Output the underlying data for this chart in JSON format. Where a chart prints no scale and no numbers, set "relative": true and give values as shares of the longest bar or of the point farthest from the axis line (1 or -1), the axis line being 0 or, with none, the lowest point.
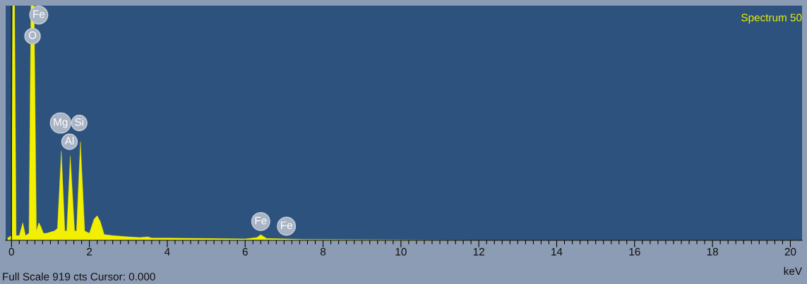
{
  "chart_data": {
    "type": "area",
    "title": "Spectrum 50",
    "xlabel": "keV",
    "relative": true,
    "color": "#f2f000",
    "x": [
      -0.1,
      0.0,
      0.03,
      0.08,
      0.12,
      0.2,
      0.29,
      0.36,
      0.45,
      0.5,
      0.58,
      0.64,
      0.7,
      0.75,
      0.82,
      0.9,
      1.0,
      1.1,
      1.18,
      1.28,
      1.37,
      1.42,
      1.51,
      1.62,
      1.67,
      1.77,
      1.88,
      2.0,
      2.12,
      2.2,
      2.28,
      2.38,
      2.6,
      3.0,
      3.3,
      3.5,
      3.6,
      4.0,
      5.0,
      6.0,
      6.3,
      6.4,
      6.55,
      7.06,
      7.5,
      9.0,
      10.0,
      11.0,
      12.0,
      20.2
    ],
    "values": [
      0.01,
      0.02,
      1,
      1,
      0.02,
      0.02,
      0.075,
      0.02,
      0.03,
      1,
      1,
      0.04,
      0.075,
      0.06,
      0.03,
      0.03,
      0.035,
      0.04,
      0.05,
      0.38,
      0.04,
      0.04,
      0.36,
      0.04,
      0.04,
      0.42,
      0.04,
      0.03,
      0.09,
      0.105,
      0.08,
      0.025,
      0.02,
      0.015,
      0.012,
      0.015,
      0.01,
      0.01,
      0.008,
      0.006,
      0.012,
      0.024,
      0.008,
      0.006,
      0.004,
      0.003,
      0.002,
      0.001,
      0.0,
      0.0
    ],
    "xlim": [
      -0.15,
      20.3
    ],
    "xticks": [
      0,
      {
        "value": 0.2,
        "label": null
      },
      {
        "value": 0.4,
        "label": null
      },
      {
        "value": 0.6,
        "label": null
      },
      {
        "value": 0.8,
        "label": null
      },
      {
        "value": 1,
        "label": null
      },
      {
        "value": 1.2,
        "label": null
      },
      {
        "value": 1.4,
        "label": null
      },
      {
        "value": 1.6,
        "label": null
      },
      {
        "value": 1.8,
        "label": null
      },
      2,
      {
        "value": 2.2,
        "label": null
      },
      {
        "value": 2.4,
        "label": null
      },
      {
        "value": 2.6,
        "label": null
      },
      {
        "value": 2.8,
        "label": null
      },
      {
        "value": 3,
        "label": null
      },
      {
        "value": 3.2,
        "label": null
      },
      {
        "value": 3.4,
        "label": null
      },
      {
        "value": 3.6,
        "label": null
      },
      {
        "value": 3.8,
        "label": null
      },
      4,
      {
        "value": 4.2,
        "label": null
      },
      {
        "value": 4.4,
        "label": null
      },
      {
        "value": 4.6,
        "label": null
      },
      {
        "value": 4.8,
        "label": null
      },
      {
        "value": 5,
        "label": null
      },
      {
        "value": 5.2,
        "label": null
      },
      {
        "value": 5.4,
        "label": null
      },
      {
        "value": 5.6,
        "label": null
      },
      {
        "value": 5.8,
        "label": null
      },
      6,
      {
        "value": 6.2,
        "label": null
      },
      {
        "value": 6.4,
        "label": null
      },
      {
        "value": 6.6,
        "label": null
      },
      {
        "value": 6.8,
        "label": null
      },
      {
        "value": 7,
        "label": null
      },
      {
        "value": 7.2,
        "label": null
      },
      {
        "value": 7.4,
        "label": null
      },
      {
        "value": 7.6,
        "label": null
      },
      {
        "value": 7.8,
        "label": null
      },
      8,
      {
        "value": 8.2,
        "label": null
      },
      {
        "value": 8.4,
        "label": null
      },
      {
        "value": 8.6,
        "label": null
      },
      {
        "value": 8.8,
        "label": null
      },
      {
        "value": 9,
        "label": null
      },
      {
        "value": 9.2,
        "label": null
      },
      {
        "value": 9.4,
        "label": null
      },
      {
        "value": 9.6,
        "label": null
      },
      {
        "value": 9.8,
        "label": null
      },
      10,
      {
        "value": 10.2,
        "label": null
      },
      {
        "value": 10.4,
        "label": null
      },
      {
        "value": 10.6,
        "label": null
      },
      {
        "value": 10.8,
        "label": null
      },
      {
        "value": 11,
        "label": null
      },
      {
        "value": 11.2,
        "label": null
      },
      {
        "value": 11.4,
        "label": null
      },
      {
        "value": 11.6,
        "label": null
      },
      {
        "value": 11.8,
        "label": null
      },
      12,
      {
        "value": 12.2,
        "label": null
      },
      {
        "value": 12.4,
        "label": null
      },
      {
        "value": 12.6,
        "label": null
      },
      {
        "value": 12.8,
        "label": null
      },
      {
        "value": 13,
        "label": null
      },
      {
        "value": 13.2,
        "label": null
      },
      {
        "value": 13.4,
        "label": null
      },
      {
        "value": 13.6,
        "label": null
      },
      {
        "value": 13.8,
        "label": null
      },
      14,
      {
        "value": 14.2,
        "label": null
      },
      {
        "value": 14.4,
        "label": null
      },
      {
        "value": 14.6,
        "label": null
      },
      {
        "value": 14.8,
        "label": null
      },
      {
        "value": 15,
        "label": null
      },
      {
        "value": 15.2,
        "label": null
      },
      {
        "value": 15.4,
        "label": null
      },
      {
        "value": 15.6,
        "label": null
      },
      {
        "value": 15.8,
        "label": null
      },
      16,
      {
        "value": 16.2,
        "label": null
      },
      {
        "value": 16.4,
        "label": null
      },
      {
        "value": 16.6,
        "label": null
      },
      {
        "value": 16.8,
        "label": null
      },
      {
        "value": 17,
        "label": null
      },
      {
        "value": 17.2,
        "label": null
      },
      {
        "value": 17.4,
        "label": null
      },
      {
        "value": 17.6,
        "label": null
      },
      {
        "value": 17.8,
        "label": null
      },
      18,
      {
        "value": 18.2,
        "label": null
      },
      {
        "value": 18.4,
        "label": null
      },
      {
        "value": 18.6,
        "label": null
      },
      {
        "value": 18.8,
        "label": null
      },
      {
        "value": 19,
        "label": null
      },
      {
        "value": 19.2,
        "label": null
      },
      {
        "value": 19.4,
        "label": null
      },
      {
        "value": 19.6,
        "label": null
      },
      {
        "value": 19.8,
        "label": null
      },
      20
    ],
    "ref_lines": [
      {
        "axis": "x",
        "value": 0,
        "color": "#1a1a1a"
      }
    ],
    "annotations": [
      {
        "text": "Fe",
        "x": 0.7,
        "y": 0.96
      },
      {
        "text": "O",
        "x": 0.54,
        "y": 0.87
      },
      {
        "text": "Mg",
        "x": 1.26,
        "y": 0.5
      },
      {
        "text": "Si",
        "x": 1.74,
        "y": 0.5
      },
      {
        "text": "Al",
        "x": 1.49,
        "y": 0.42
      },
      {
        "text": "Fe",
        "x": 6.4,
        "y": 0.08
      },
      {
        "text": "Fe",
        "x": 7.06,
        "y": 0.06
      },
      "Full Scale 919 cts Cursor: 0.000"
    ]
  }
}
